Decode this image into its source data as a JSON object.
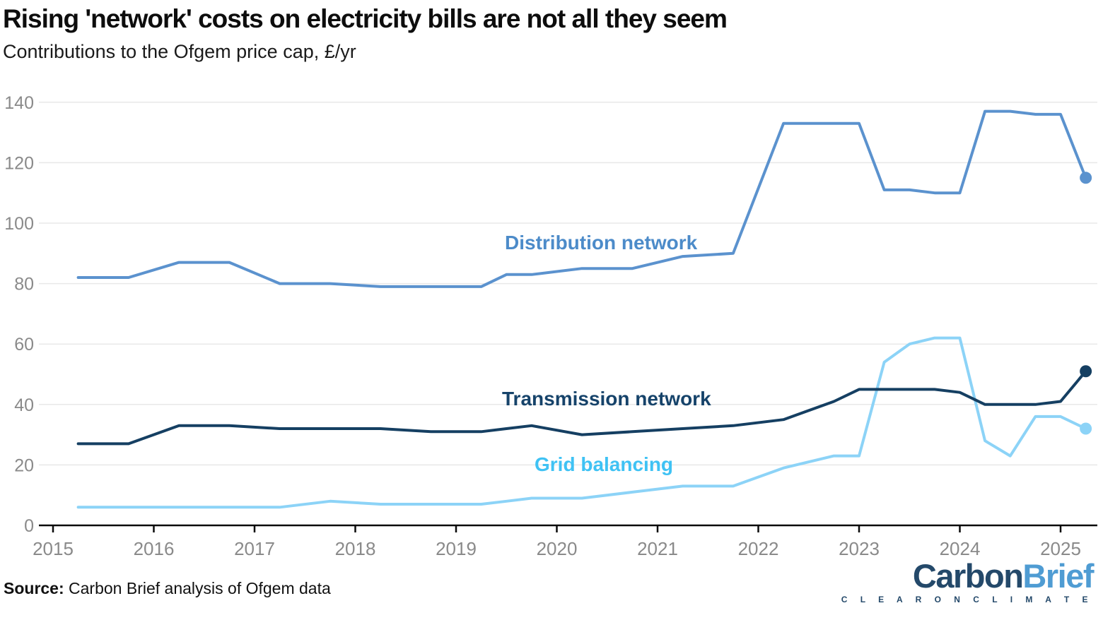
{
  "header": {
    "title": "Rising 'network' costs on electricity bills are not all they seem",
    "subtitle": "Contributions to the Ofgem price cap, £/yr"
  },
  "source": {
    "label": "Source:",
    "text": " Carbon Brief analysis of Ofgem data"
  },
  "logo": {
    "part1": "Carbon",
    "part2": "Brief",
    "tagline": "C L E A R   O N   C L I M A T E"
  },
  "colors": {
    "grid_line": "#e8e8e8",
    "axis_line": "#0a0a0a",
    "tick_text": "#8a8a8a"
  },
  "chart_data": {
    "type": "line",
    "title": "Rising 'network' costs on electricity bills are not all they seem",
    "subtitle": "Contributions to the Ofgem price cap, £/yr",
    "xlabel": "",
    "ylabel": "£/yr",
    "xlim": [
      2014.86,
      2025.4
    ],
    "ylim": [
      0,
      140
    ],
    "grid": "horizontal",
    "legend_position": "inline-annotations",
    "x_ticks": [
      2015,
      2016,
      2017,
      2018,
      2019,
      2020,
      2021,
      2022,
      2023,
      2024,
      2025
    ],
    "y_ticks": [
      0,
      20,
      40,
      60,
      80,
      100,
      120,
      140
    ],
    "x": [
      2015.25,
      2015.75,
      2016.25,
      2016.75,
      2017.25,
      2017.75,
      2018.25,
      2018.75,
      2019.25,
      2019.5,
      2019.75,
      2020.25,
      2020.75,
      2021.25,
      2021.75,
      2022.25,
      2022.75,
      2023.0,
      2023.25,
      2023.5,
      2023.75,
      2024.0,
      2024.25,
      2024.5,
      2024.75,
      2025.0,
      2025.25
    ],
    "series": [
      {
        "name": "Distribution network",
        "color": "#5b92ce",
        "label_color": "#4c8bc9",
        "end_dot": true,
        "values": [
          82,
          82,
          87,
          87,
          80,
          80,
          79,
          79,
          79,
          83,
          83,
          85,
          85,
          89,
          90,
          133,
          133,
          133,
          111,
          111,
          110,
          110,
          137,
          137,
          136,
          136,
          115
        ]
      },
      {
        "name": "Transmission network",
        "color": "#153f62",
        "label_color": "#16436a",
        "end_dot": true,
        "values": [
          27,
          27,
          33,
          33,
          32,
          32,
          32,
          31,
          31,
          32,
          33,
          30,
          31,
          32,
          33,
          35,
          41,
          45,
          45,
          45,
          45,
          44,
          40,
          40,
          40,
          41,
          51
        ]
      },
      {
        "name": "Grid balancing",
        "color": "#8cd3f7",
        "label_color": "#3fc2f4",
        "end_dot": true,
        "values": [
          6,
          6,
          6,
          6,
          6,
          8,
          7,
          7,
          7,
          8,
          9,
          9,
          11,
          13,
          13,
          19,
          23,
          23,
          54,
          60,
          62,
          62,
          28,
          23,
          36,
          36,
          32
        ]
      }
    ]
  }
}
